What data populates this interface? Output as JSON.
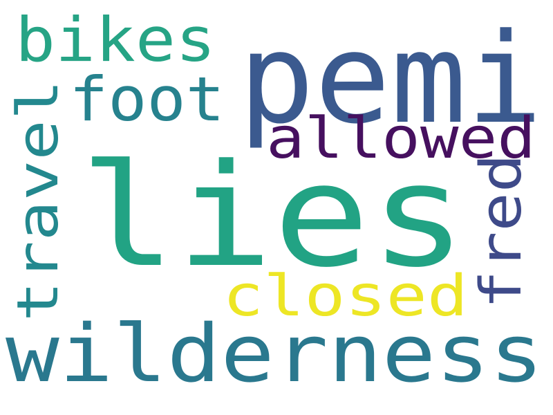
{
  "word_cloud": {
    "words": [
      {
        "id": "lies",
        "text": "lies",
        "color": "#22a384"
      },
      {
        "id": "pemi",
        "text": "pemi",
        "color": "#3b5a8f"
      },
      {
        "id": "wilderness",
        "text": "wilderness",
        "color": "#2a788e"
      },
      {
        "id": "bikes",
        "text": "bikes",
        "color": "#26a485"
      },
      {
        "id": "foot",
        "text": "foot",
        "color": "#26828e"
      },
      {
        "id": "allowed",
        "text": "allowed",
        "color": "#46105f"
      },
      {
        "id": "travel",
        "text": "travel",
        "color": "#23888e"
      },
      {
        "id": "fred",
        "text": "fred",
        "color": "#3e4a89"
      },
      {
        "id": "closed",
        "text": "closed",
        "color": "#ede625"
      }
    ]
  }
}
